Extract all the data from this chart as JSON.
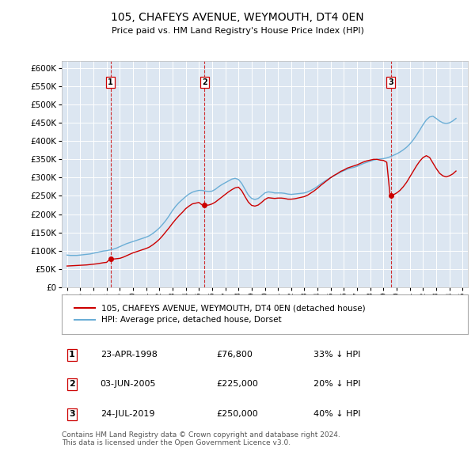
{
  "title": "105, CHAFEYS AVENUE, WEYMOUTH, DT4 0EN",
  "subtitle": "Price paid vs. HM Land Registry's House Price Index (HPI)",
  "plot_bg_color": "#dce6f1",
  "hpi_color": "#6baed6",
  "price_color": "#cc0000",
  "vline_color": "#cc0000",
  "ylim": [
    0,
    620000
  ],
  "yticks": [
    0,
    50000,
    100000,
    150000,
    200000,
    250000,
    300000,
    350000,
    400000,
    450000,
    500000,
    550000,
    600000
  ],
  "xlim_start": 1994.6,
  "xlim_end": 2025.4,
  "purchases": [
    {
      "year": 1998.31,
      "price": 76800,
      "label": "1"
    },
    {
      "year": 2005.42,
      "price": 225000,
      "label": "2"
    },
    {
      "year": 2019.56,
      "price": 250000,
      "label": "3"
    }
  ],
  "purchase_info": [
    {
      "num": "1",
      "date": "23-APR-1998",
      "price": "£76,800",
      "pct": "33% ↓ HPI"
    },
    {
      "num": "2",
      "date": "03-JUN-2005",
      "price": "£225,000",
      "pct": "20% ↓ HPI"
    },
    {
      "num": "3",
      "date": "24-JUL-2019",
      "price": "£250,000",
      "pct": "40% ↓ HPI"
    }
  ],
  "legend_entries": [
    "105, CHAFEYS AVENUE, WEYMOUTH, DT4 0EN (detached house)",
    "HPI: Average price, detached house, Dorset"
  ],
  "footer": "Contains HM Land Registry data © Crown copyright and database right 2024.\nThis data is licensed under the Open Government Licence v3.0.",
  "hpi_data": {
    "years": [
      1995.0,
      1995.25,
      1995.5,
      1995.75,
      1996.0,
      1996.25,
      1996.5,
      1996.75,
      1997.0,
      1997.25,
      1997.5,
      1997.75,
      1998.0,
      1998.25,
      1998.5,
      1998.75,
      1999.0,
      1999.25,
      1999.5,
      1999.75,
      2000.0,
      2000.25,
      2000.5,
      2000.75,
      2001.0,
      2001.25,
      2001.5,
      2001.75,
      2002.0,
      2002.25,
      2002.5,
      2002.75,
      2003.0,
      2003.25,
      2003.5,
      2003.75,
      2004.0,
      2004.25,
      2004.5,
      2004.75,
      2005.0,
      2005.25,
      2005.5,
      2005.75,
      2006.0,
      2006.25,
      2006.5,
      2006.75,
      2007.0,
      2007.25,
      2007.5,
      2007.75,
      2008.0,
      2008.25,
      2008.5,
      2008.75,
      2009.0,
      2009.25,
      2009.5,
      2009.75,
      2010.0,
      2010.25,
      2010.5,
      2010.75,
      2011.0,
      2011.25,
      2011.5,
      2011.75,
      2012.0,
      2012.25,
      2012.5,
      2012.75,
      2013.0,
      2013.25,
      2013.5,
      2013.75,
      2014.0,
      2014.25,
      2014.5,
      2014.75,
      2015.0,
      2015.25,
      2015.5,
      2015.75,
      2016.0,
      2016.25,
      2016.5,
      2016.75,
      2017.0,
      2017.25,
      2017.5,
      2017.75,
      2018.0,
      2018.25,
      2018.5,
      2018.75,
      2019.0,
      2019.25,
      2019.5,
      2019.75,
      2020.0,
      2020.25,
      2020.5,
      2020.75,
      2021.0,
      2021.25,
      2021.5,
      2021.75,
      2022.0,
      2022.25,
      2022.5,
      2022.75,
      2023.0,
      2023.25,
      2023.5,
      2023.75,
      2024.0,
      2024.25,
      2024.5
    ],
    "values": [
      88000,
      87000,
      87000,
      87000,
      88000,
      89000,
      90000,
      91000,
      93000,
      95000,
      97000,
      99000,
      100000,
      102000,
      104000,
      107000,
      111000,
      115000,
      119000,
      122000,
      125000,
      128000,
      131000,
      134000,
      137000,
      141000,
      147000,
      154000,
      162000,
      172000,
      183000,
      196000,
      210000,
      222000,
      232000,
      240000,
      248000,
      255000,
      260000,
      263000,
      265000,
      265000,
      263000,
      262000,
      263000,
      268000,
      275000,
      281000,
      286000,
      291000,
      296000,
      298000,
      295000,
      284000,
      268000,
      252000,
      243000,
      240000,
      243000,
      250000,
      258000,
      261000,
      260000,
      258000,
      258000,
      258000,
      257000,
      255000,
      254000,
      255000,
      256000,
      257000,
      258000,
      261000,
      265000,
      270000,
      276000,
      283000,
      289000,
      295000,
      300000,
      305000,
      310000,
      315000,
      319000,
      323000,
      326000,
      328000,
      331000,
      335000,
      339000,
      342000,
      345000,
      348000,
      350000,
      351000,
      352000,
      354000,
      357000,
      361000,
      365000,
      370000,
      376000,
      383000,
      392000,
      403000,
      416000,
      430000,
      445000,
      458000,
      466000,
      468000,
      462000,
      455000,
      450000,
      448000,
      450000,
      455000,
      462000
    ]
  },
  "price_data": {
    "years": [
      1995.0,
      1995.25,
      1995.5,
      1995.75,
      1996.0,
      1996.25,
      1996.5,
      1996.75,
      1997.0,
      1997.25,
      1997.5,
      1997.75,
      1998.0,
      1998.25,
      1998.5,
      1998.75,
      1999.0,
      1999.25,
      1999.5,
      1999.75,
      2000.0,
      2000.25,
      2000.5,
      2000.75,
      2001.0,
      2001.25,
      2001.5,
      2001.75,
      2002.0,
      2002.25,
      2002.5,
      2002.75,
      2003.0,
      2003.25,
      2003.5,
      2003.75,
      2004.0,
      2004.25,
      2004.5,
      2004.75,
      2005.0,
      2005.25,
      2005.5,
      2005.75,
      2006.0,
      2006.25,
      2006.5,
      2006.75,
      2007.0,
      2007.25,
      2007.5,
      2007.75,
      2008.0,
      2008.25,
      2008.5,
      2008.75,
      2009.0,
      2009.25,
      2009.5,
      2009.75,
      2010.0,
      2010.25,
      2010.5,
      2010.75,
      2011.0,
      2011.25,
      2011.5,
      2011.75,
      2012.0,
      2012.25,
      2012.5,
      2012.75,
      2013.0,
      2013.25,
      2013.5,
      2013.75,
      2014.0,
      2014.25,
      2014.5,
      2014.75,
      2015.0,
      2015.25,
      2015.5,
      2015.75,
      2016.0,
      2016.25,
      2016.5,
      2016.75,
      2017.0,
      2017.25,
      2017.5,
      2017.75,
      2018.0,
      2018.25,
      2018.5,
      2018.75,
      2019.0,
      2019.25,
      2019.5,
      2019.75,
      2020.0,
      2020.25,
      2020.5,
      2020.75,
      2021.0,
      2021.25,
      2021.5,
      2021.75,
      2022.0,
      2022.25,
      2022.5,
      2022.75,
      2023.0,
      2023.25,
      2023.5,
      2023.75,
      2024.0,
      2024.25,
      2024.5
    ],
    "values": [
      58000,
      58500,
      59000,
      59500,
      60000,
      60500,
      61000,
      62000,
      63000,
      64000,
      65500,
      67000,
      68000,
      76800,
      77000,
      78000,
      79000,
      82000,
      86000,
      90000,
      94000,
      97000,
      100000,
      103000,
      106000,
      110000,
      116000,
      123000,
      131000,
      141000,
      152000,
      163000,
      175000,
      186000,
      196000,
      205000,
      215000,
      222000,
      228000,
      230000,
      232000,
      225000,
      224000,
      225000,
      228000,
      233000,
      240000,
      247000,
      254000,
      261000,
      267000,
      272000,
      274000,
      264000,
      248000,
      233000,
      224000,
      222000,
      225000,
      232000,
      240000,
      245000,
      244000,
      243000,
      244000,
      244000,
      243000,
      241000,
      241000,
      242000,
      244000,
      246000,
      248000,
      252000,
      258000,
      264000,
      271000,
      279000,
      286000,
      293000,
      300000,
      306000,
      311000,
      317000,
      321000,
      326000,
      329000,
      332000,
      335000,
      339000,
      343000,
      346000,
      348000,
      350000,
      350000,
      348000,
      347000,
      342000,
      250000,
      253000,
      258000,
      265000,
      275000,
      287000,
      302000,
      317000,
      332000,
      345000,
      355000,
      360000,
      355000,
      340000,
      325000,
      312000,
      305000,
      302000,
      305000,
      310000,
      318000
    ]
  }
}
